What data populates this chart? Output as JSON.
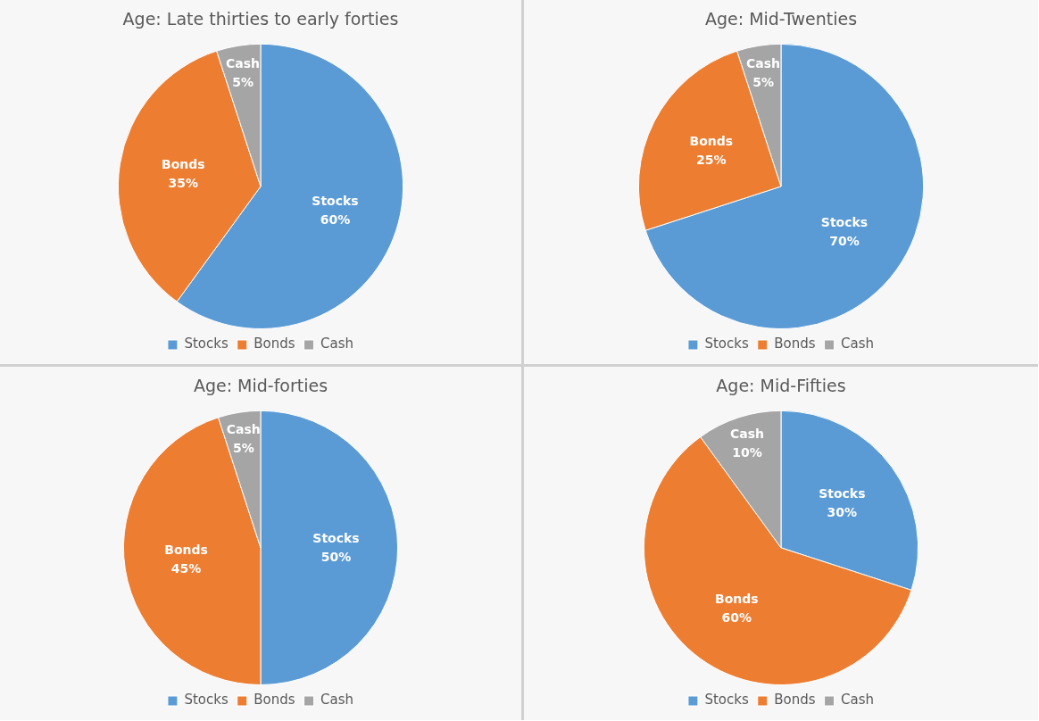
{
  "chart_data": [
    {
      "type": "pie",
      "title": "Age: Late thirties to early forties",
      "categories": [
        "Stocks",
        "Bonds",
        "Cash"
      ],
      "values": [
        60,
        35,
        5
      ],
      "value_labels": [
        "60%",
        "35%",
        "5%"
      ],
      "colors": [
        "#5b9bd5",
        "#ed7d31",
        "#a5a5a5"
      ],
      "legend": "bottom"
    },
    {
      "type": "pie",
      "title": "Age: Mid-Twenties",
      "categories": [
        "Stocks",
        "Bonds",
        "Cash"
      ],
      "values": [
        70,
        25,
        5
      ],
      "value_labels": [
        "70%",
        "25%",
        "5%"
      ],
      "colors": [
        "#5b9bd5",
        "#ed7d31",
        "#a5a5a5"
      ],
      "legend": "bottom"
    },
    {
      "type": "pie",
      "title": "Age: Mid-forties",
      "categories": [
        "Stocks",
        "Bonds",
        "Cash"
      ],
      "values": [
        50,
        45,
        5
      ],
      "value_labels": [
        "50%",
        "45%",
        "5%"
      ],
      "colors": [
        "#5b9bd5",
        "#ed7d31",
        "#a5a5a5"
      ],
      "legend": "bottom"
    },
    {
      "type": "pie",
      "title": "Age: Mid-Fifties",
      "categories": [
        "Stocks",
        "Bonds",
        "Cash"
      ],
      "values": [
        30,
        60,
        10
      ],
      "value_labels": [
        "30%",
        "60%",
        "10%"
      ],
      "colors": [
        "#5b9bd5",
        "#ed7d31",
        "#a5a5a5"
      ],
      "legend": "bottom"
    }
  ]
}
